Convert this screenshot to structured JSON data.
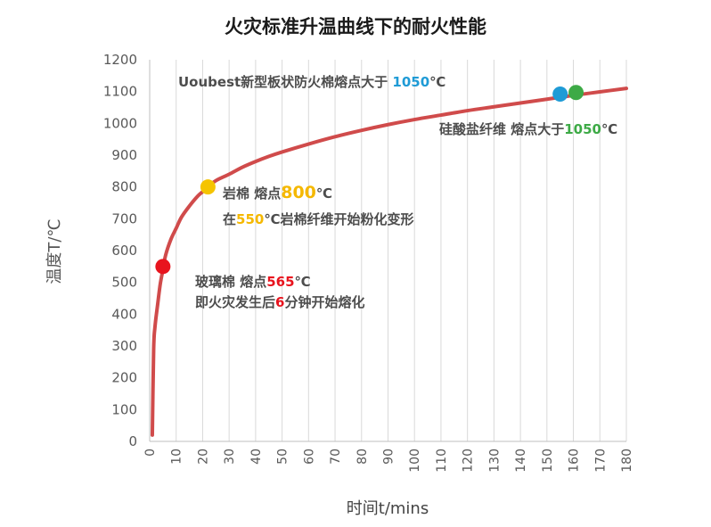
{
  "chart_data": {
    "type": "line",
    "title": "火灾标准升温曲线下的耐火性能",
    "xlabel": "时间t/mins",
    "ylabel": "温度T/℃",
    "xlim": [
      0,
      180
    ],
    "ylim": [
      0,
      1200
    ],
    "xticks": [
      0,
      10,
      20,
      30,
      40,
      50,
      60,
      70,
      80,
      90,
      100,
      110,
      120,
      130,
      140,
      150,
      160,
      170,
      180
    ],
    "yticks": [
      0,
      100,
      200,
      300,
      400,
      500,
      600,
      700,
      800,
      900,
      1000,
      1100,
      1200
    ],
    "grid": "vertical",
    "series": [
      {
        "color": "#d04b4b",
        "x": [
          1,
          1.5,
          2,
          3,
          4,
          5,
          6,
          8,
          10,
          12,
          15,
          18,
          20,
          22,
          25,
          30,
          35,
          40,
          45,
          50,
          60,
          70,
          80,
          90,
          100,
          110,
          120,
          130,
          140,
          150,
          160,
          170,
          180
        ],
        "y": [
          20,
          290,
          360,
          430,
          495,
          540,
          585,
          635,
          670,
          705,
          740,
          770,
          785,
          800,
          820,
          840,
          862,
          880,
          896,
          910,
          935,
          958,
          978,
          996,
          1012,
          1026,
          1040,
          1052,
          1064,
          1076,
          1088,
          1099,
          1110
        ]
      }
    ],
    "points": [
      {
        "name": "玻璃棉",
        "x": 5,
        "y": 550,
        "color": "#e8141e"
      },
      {
        "name": "岩棉",
        "x": 22,
        "y": 800,
        "color": "#f5c400"
      },
      {
        "name": "Uoubest新型板状防火棉",
        "x": 155,
        "y": 1092,
        "color": "#1f9bd6"
      },
      {
        "name": "硅酸盐纤维",
        "x": 161,
        "y": 1097,
        "color": "#3daa46"
      }
    ]
  },
  "annotations": {
    "uoubest": {
      "text": "Uoubest新型板状防火棉熔点大于 ",
      "num": "1050",
      "unit": "℃"
    },
    "silicate": {
      "text": "硅酸盐纤维  熔点大于",
      "num": "1050",
      "unit": "℃"
    },
    "rockwool_1": {
      "text": "岩棉  熔点",
      "num": "800",
      "unit": "℃"
    },
    "rockwool_2": {
      "pre": "在",
      "num": "550",
      "text": "℃岩棉纤维开始粉化变形"
    },
    "glass_1": {
      "text": "玻璃棉  熔点",
      "num": "565",
      "unit": "℃"
    },
    "glass_2": {
      "text": "即火灾发生后",
      "num": "6",
      "post": "分钟开始熔化"
    }
  }
}
